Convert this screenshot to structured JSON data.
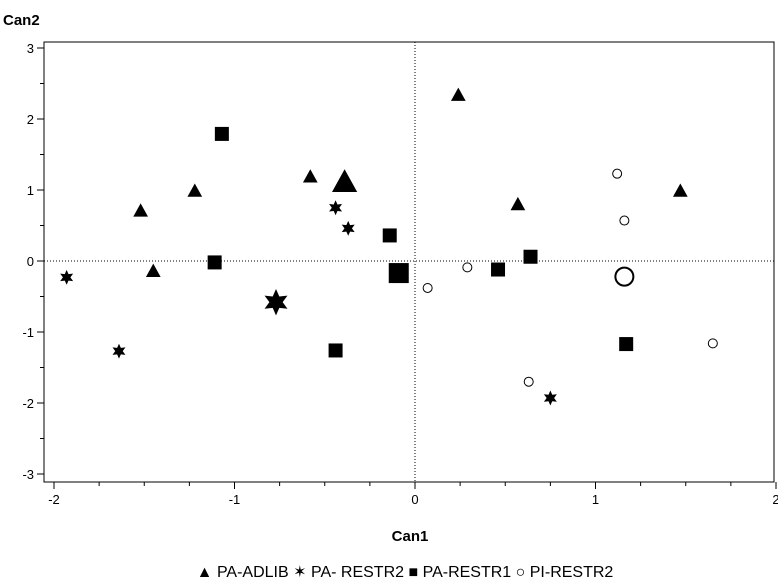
{
  "chart_data": {
    "type": "scatter",
    "title": "",
    "xlabel": "Can1",
    "ylabel": "Can2",
    "xlim": [
      -2.1,
      2.0
    ],
    "ylim": [
      -3.2,
      3.2
    ],
    "x_ticks": [
      -2,
      -1,
      0,
      1,
      2
    ],
    "y_ticks": [
      -3,
      -2,
      -1,
      0,
      1,
      2,
      3
    ],
    "reference_lines": {
      "x": 0,
      "y": 0,
      "style": "dotted"
    },
    "grid": false,
    "legend_placement": "bottom",
    "series": [
      {
        "name": "PA-ADLIB",
        "marker": "triangle",
        "legend_label": "▲ PA-ADLIB",
        "points": [
          {
            "x": -1.52,
            "y": 0.7
          },
          {
            "x": -1.22,
            "y": 0.98
          },
          {
            "x": -1.45,
            "y": -0.15
          },
          {
            "x": -0.58,
            "y": 1.18
          },
          {
            "x": 0.24,
            "y": 2.33
          },
          {
            "x": 0.57,
            "y": 0.79
          },
          {
            "x": 1.47,
            "y": 0.98
          }
        ],
        "centroid": {
          "x": -0.39,
          "y": 1.1
        }
      },
      {
        "name": "PA- RESTR2",
        "marker": "star",
        "legend_label": "✶ PA- RESTR2",
        "points": [
          {
            "x": -1.93,
            "y": -0.23
          },
          {
            "x": -1.64,
            "y": -1.27
          },
          {
            "x": -0.44,
            "y": 0.75
          },
          {
            "x": -0.37,
            "y": 0.46
          },
          {
            "x": 0.75,
            "y": -1.93
          }
        ],
        "centroid": {
          "x": -0.77,
          "y": -0.58
        }
      },
      {
        "name": "PA-RESTR1",
        "marker": "square",
        "legend_label": "■ PA-RESTR1",
        "points": [
          {
            "x": -1.07,
            "y": 1.79
          },
          {
            "x": -1.11,
            "y": -0.02
          },
          {
            "x": -0.14,
            "y": 0.36
          },
          {
            "x": -0.44,
            "y": -1.26
          },
          {
            "x": 0.46,
            "y": -0.12
          },
          {
            "x": 0.64,
            "y": 0.06
          },
          {
            "x": 1.17,
            "y": -1.17
          }
        ],
        "centroid": {
          "x": -0.09,
          "y": -0.17
        }
      },
      {
        "name": "PI-RESTR2",
        "marker": "circle",
        "legend_label": "○ PI-RESTR2",
        "points": [
          {
            "x": 0.07,
            "y": -0.38
          },
          {
            "x": 0.29,
            "y": -0.09
          },
          {
            "x": 1.12,
            "y": 1.23
          },
          {
            "x": 1.16,
            "y": 0.57
          },
          {
            "x": 0.63,
            "y": -1.7
          },
          {
            "x": 1.65,
            "y": -1.16
          }
        ],
        "centroid": {
          "x": 1.16,
          "y": -0.22
        }
      }
    ]
  }
}
